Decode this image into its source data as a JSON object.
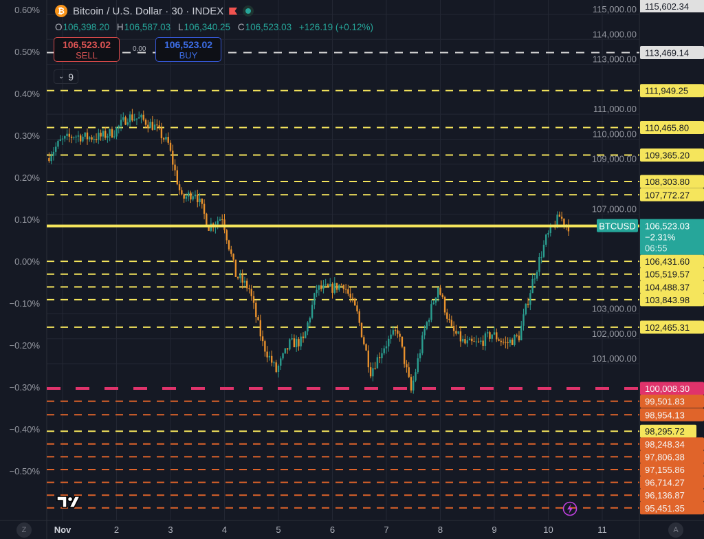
{
  "header": {
    "symbol_title": "Bitcoin / U.S. Dollar · 30 · INDEX",
    "icon": "bitcoin-icon",
    "ohlc": {
      "o_label": "O",
      "o": "106,398.20",
      "h_label": "H",
      "h": "106,587.03",
      "l_label": "L",
      "l": "106,340.25",
      "c_label": "C",
      "c": "106,523.03",
      "change": "+126.19 (+0.12%)"
    }
  },
  "trade": {
    "sell_price": "106,523.02",
    "sell_label": "SELL",
    "buy_price": "106,523.02",
    "buy_label": "BUY",
    "spread": "0.00"
  },
  "indicators_toggle": {
    "count": "9"
  },
  "bottom_left_button": "Z",
  "bottom_right_button": "A",
  "colors": {
    "background": "#151924",
    "up": "#2a9d8f",
    "down": "#e8912d",
    "level_yellow": "#f5e55c",
    "level_orange": "#e0642a",
    "level_red": "#e0336b",
    "level_white": "#d9d9d9",
    "last_price": "#26a69a"
  },
  "chart_data": {
    "type": "candlestick",
    "title": "Bitcoin / U.S. Dollar · 30 · INDEX",
    "interval": "30",
    "x_ticks": [
      "Nov",
      "2",
      "3",
      "4",
      "5",
      "6",
      "7",
      "8",
      "9",
      "10",
      "11"
    ],
    "y_ticks_right": [
      115000,
      114000,
      113000,
      111000,
      110000,
      109000,
      107000,
      103000,
      102000,
      101000
    ],
    "y_ticks_right_labels": [
      "115,000.00",
      "114,000.00",
      "113,000.00",
      "111,000.00",
      "110,000.00",
      "109,000.00",
      "107,000.00",
      "103,000.00",
      "102,000.00",
      "101,000.00"
    ],
    "y_ticks_left": [
      "0.60%",
      "0.50%",
      "0.40%",
      "0.30%",
      "0.20%",
      "0.10%",
      "0.00%",
      "−0.10%",
      "−0.20%",
      "−0.30%",
      "−0.40%",
      "−0.50%"
    ],
    "y_range": [
      95000,
      115700
    ],
    "grid": true,
    "approx_close_series": {
      "day_offsets_from_nov1": [
        -0.25,
        0,
        0.25,
        0.5,
        0.75,
        1,
        1.25,
        1.5,
        1.75,
        2,
        2.25,
        2.5,
        2.75,
        3,
        3.25,
        3.5,
        3.75,
        4,
        4.25,
        4.5,
        4.75,
        5,
        5.25,
        5.5,
        5.75,
        6,
        6.25,
        6.5,
        6.75,
        7,
        7.25,
        7.5,
        7.75,
        8,
        8.25,
        8.5,
        8.75,
        9,
        9.25,
        9.4
      ],
      "close": [
        109240,
        109900,
        110150,
        110070,
        110100,
        110300,
        110900,
        110800,
        110500,
        109800,
        107590,
        107900,
        106500,
        106900,
        104560,
        104000,
        101800,
        100700,
        101800,
        101900,
        104000,
        104000,
        104200,
        103000,
        100700,
        101700,
        102350,
        99900,
        102350,
        104100,
        102350,
        101800,
        101800,
        102200,
        101800,
        102100,
        104300,
        106000,
        106900,
        106523
      ]
    },
    "last_price": {
      "symbol": "BTCUSD",
      "value": 106523.03,
      "label": "106,523.03",
      "change": "−2.31%",
      "countdown": "06:55"
    },
    "top_label": {
      "value": 115602.34,
      "label": "115,602.34"
    },
    "levels": [
      {
        "value": 113469.14,
        "label": "113,469.14",
        "color": "white",
        "style": "dashed"
      },
      {
        "value": 111949.25,
        "label": "111,949.25",
        "color": "yellow",
        "style": "dashed"
      },
      {
        "value": 110465.8,
        "label": "110,465.80",
        "color": "yellow",
        "style": "dashed"
      },
      {
        "value": 109365.2,
        "label": "109,365.20",
        "color": "yellow",
        "style": "dashed"
      },
      {
        "value": 108303.8,
        "label": "108,303.80",
        "color": "yellow",
        "style": "dashed"
      },
      {
        "value": 107772.27,
        "label": "107,772.27",
        "color": "yellow",
        "style": "dashed"
      },
      {
        "value": 106431.6,
        "label": "106,431.60",
        "color": "yellow",
        "style": "dashed"
      },
      {
        "value": 105519.57,
        "label": "105,519.57",
        "color": "yellow",
        "style": "dashed"
      },
      {
        "value": 104488.37,
        "label": "104,488.37",
        "color": "yellow",
        "style": "dashed"
      },
      {
        "value": 103843.98,
        "label": "103,843.98",
        "color": "yellow",
        "style": "dashed"
      },
      {
        "value": 102465.31,
        "label": "102,465.31",
        "color": "yellow",
        "style": "dashed"
      },
      {
        "value": 100008.3,
        "label": "100,008.30",
        "color": "red",
        "style": "long-dash"
      },
      {
        "value": 99501.83,
        "label": "99,501.83",
        "color": "orange",
        "style": "dashed"
      },
      {
        "value": 98954.13,
        "label": "98,954.13",
        "color": "orange",
        "style": "dashed"
      },
      {
        "value": 98295.72,
        "label": "98,295.72",
        "color": "yellow",
        "style": "dashed"
      },
      {
        "value": 98248.34,
        "label": "98,248.34",
        "color": "orange",
        "style": "dashed"
      },
      {
        "value": 97806.38,
        "label": "97,806.38",
        "color": "orange",
        "style": "dashed"
      },
      {
        "value": 97155.86,
        "label": "97,155.86",
        "color": "orange",
        "style": "dashed"
      },
      {
        "value": 96714.27,
        "label": "96,714.27",
        "color": "orange",
        "style": "dashed"
      },
      {
        "value": 96136.87,
        "label": "96,136.87",
        "color": "orange",
        "style": "dashed"
      },
      {
        "value": 95451.35,
        "label": "95,451.35",
        "color": "orange",
        "style": "dashed"
      }
    ]
  }
}
